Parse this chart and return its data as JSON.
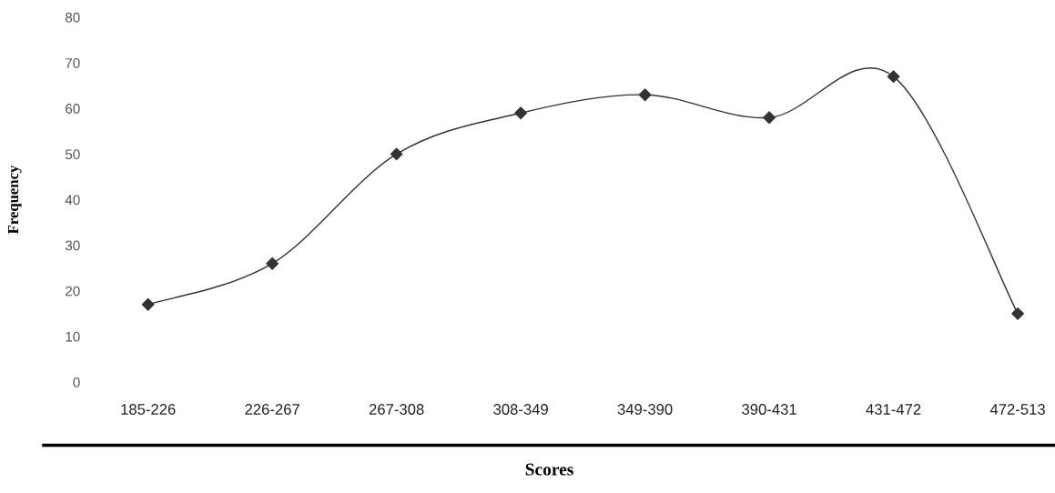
{
  "chart_data": {
    "type": "line",
    "xlabel": "Scores",
    "ylabel": "Frequency",
    "categories": [
      "185-226",
      "226-267",
      "267-308",
      "308-349",
      "349-390",
      "390-431",
      "431-472",
      "472-513"
    ],
    "series": [
      {
        "color": "#333333",
        "values": [
          17,
          26,
          50,
          59,
          63,
          58,
          67,
          15
        ]
      }
    ],
    "ylim": [
      0,
      80
    ],
    "yticks": [
      0,
      10,
      20,
      30,
      40,
      50,
      60,
      70,
      80
    ],
    "marker": "diamond"
  }
}
